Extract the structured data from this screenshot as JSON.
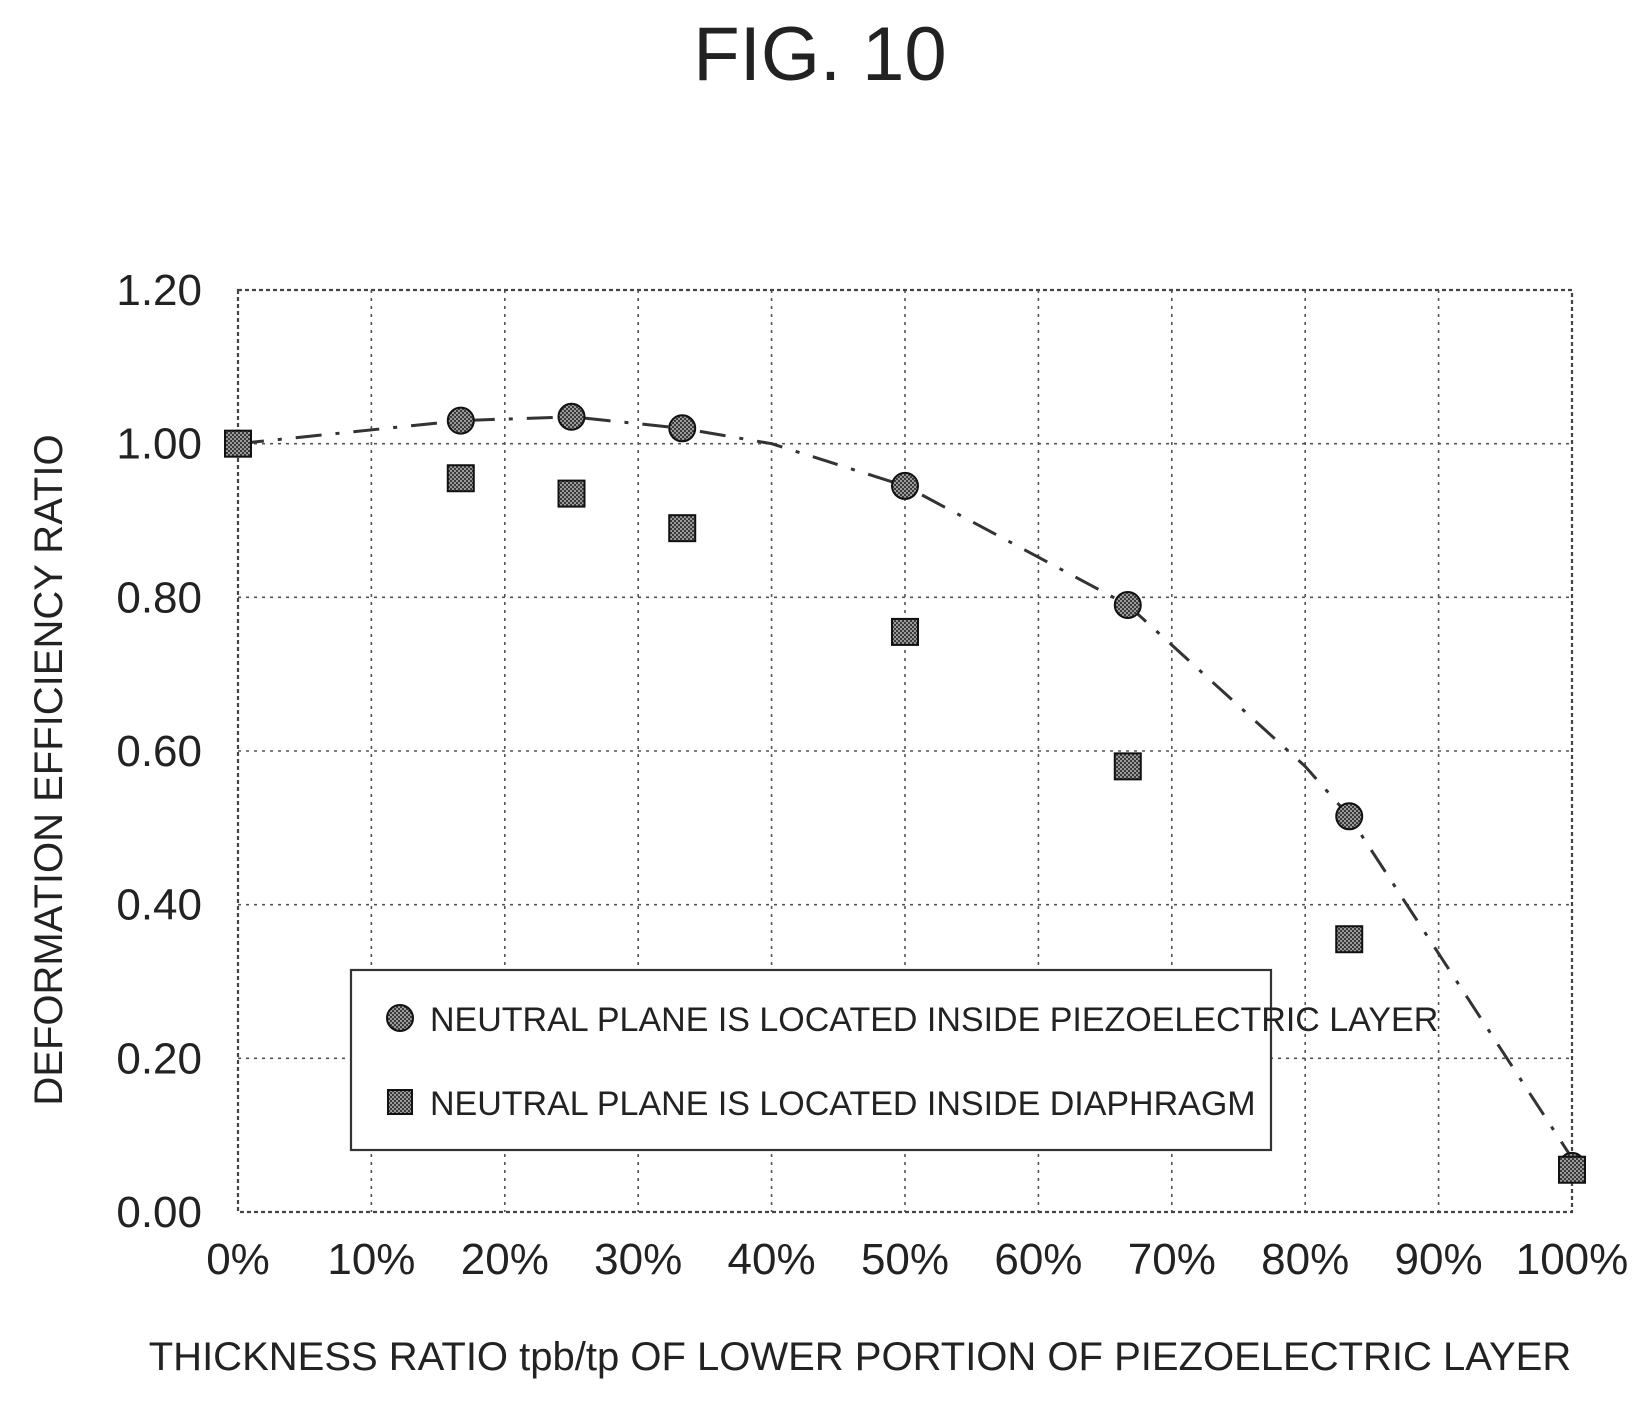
{
  "figure": {
    "title": "FIG. 10"
  },
  "legend": {
    "items": [
      {
        "label": "NEUTRAL PLANE IS LOCATED INSIDE PIEZOELECTRIC LAYER",
        "marker": "circle"
      },
      {
        "label": "NEUTRAL PLANE IS LOCATED INSIDE DIAPHRAGM",
        "marker": "square"
      }
    ]
  },
  "chart_data": {
    "type": "scatter",
    "title": "",
    "xlabel": "THICKNESS RATIO tpb/tp OF LOWER PORTION OF PIEZOELECTRIC LAYER",
    "ylabel": "DEFORMATION EFFICIENCY RATIO",
    "xlim": [
      0,
      100
    ],
    "ylim": [
      0,
      1.2
    ],
    "x_ticks": [
      "0%",
      "10%",
      "20%",
      "30%",
      "40%",
      "50%",
      "60%",
      "70%",
      "80%",
      "90%",
      "100%"
    ],
    "y_ticks": [
      "0.00",
      "0.20",
      "0.40",
      "0.60",
      "0.80",
      "1.00",
      "1.20"
    ],
    "grid": true,
    "legend_position": "bottom-center",
    "series": [
      {
        "name": "NEUTRAL PLANE IS LOCATED INSIDE PIEZOELECTRIC LAYER",
        "marker": "circle",
        "x": [
          0,
          16.7,
          25,
          33.3,
          50,
          66.7,
          83.3,
          100
        ],
        "y": [
          1.0,
          1.03,
          1.035,
          1.02,
          0.945,
          0.79,
          0.515,
          0.06
        ]
      },
      {
        "name": "NEUTRAL PLANE IS LOCATED INSIDE DIAPHRAGM",
        "marker": "square",
        "x": [
          0,
          16.7,
          25,
          33.3,
          50,
          66.7,
          83.3,
          100
        ],
        "y": [
          1.0,
          0.955,
          0.935,
          0.89,
          0.755,
          0.58,
          0.355,
          0.055
        ]
      }
    ],
    "trend_line": {
      "style": "dash-dot",
      "x": [
        0,
        16.7,
        25,
        33.3,
        40,
        50,
        66.7,
        80,
        83.3,
        100
      ],
      "y": [
        1.0,
        1.03,
        1.035,
        1.02,
        1.0,
        0.945,
        0.79,
        0.58,
        0.515,
        0.07
      ]
    }
  }
}
